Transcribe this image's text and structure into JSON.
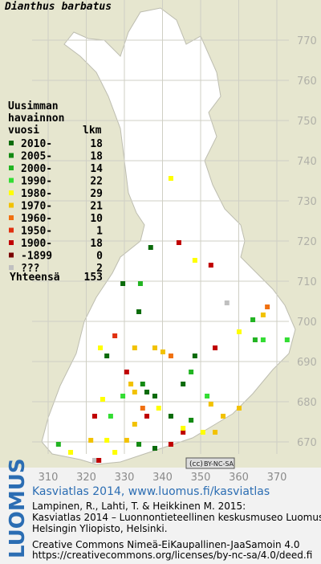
{
  "title": "Dianthus barbatus",
  "legend": {
    "header": [
      "Uusimman",
      "havainnon",
      "vuosi"
    ],
    "count_header": "lkm",
    "entries": [
      {
        "label": "2010-",
        "count": 18,
        "color": "#0b6b0b"
      },
      {
        "label": "2005-",
        "count": 18,
        "color": "#138a13"
      },
      {
        "label": "2000-",
        "count": 14,
        "color": "#22b422"
      },
      {
        "label": "1990-",
        "count": 22,
        "color": "#33dd33"
      },
      {
        "label": "1980-",
        "count": 29,
        "color": "#ffff00"
      },
      {
        "label": "1970-",
        "count": 21,
        "color": "#f2c200"
      },
      {
        "label": "1960-",
        "count": 10,
        "color": "#f07010"
      },
      {
        "label": "1950-",
        "count": 1,
        "color": "#e03010"
      },
      {
        "label": "1900-",
        "count": 18,
        "color": "#c00000"
      },
      {
        "label": "-1899",
        "count": 0,
        "color": "#7a0000"
      },
      {
        "label": "???",
        "count": 2,
        "color": "#c0c0c0"
      }
    ],
    "total_label": "Yhteensä",
    "total": 153
  },
  "xticks": [
    310,
    320,
    330,
    340,
    350,
    360,
    370
  ],
  "yticks": [
    670,
    680,
    690,
    700,
    710,
    720,
    730,
    740,
    750,
    760,
    770
  ],
  "squares": [
    [
      342.2,
      735.6,
      4
    ],
    [
      336.9,
      718.4,
      0
    ],
    [
      344.3,
      719.6,
      8
    ],
    [
      348.5,
      715.2,
      4
    ],
    [
      352.7,
      714,
      8
    ],
    [
      329.6,
      709.4,
      0
    ],
    [
      334.2,
      709.4,
      2
    ],
    [
      356.9,
      704.6,
      10
    ],
    [
      367.5,
      703.6,
      6
    ],
    [
      366.4,
      701.6,
      5
    ],
    [
      363.7,
      700.4,
      2
    ],
    [
      333.8,
      702.4,
      0
    ],
    [
      323.7,
      693.4,
      4
    ],
    [
      327.5,
      696.4,
      7
    ],
    [
      332.7,
      693.4,
      5
    ],
    [
      338,
      693.4,
      5
    ],
    [
      340.1,
      692.4,
      5
    ],
    [
      353.8,
      693.4,
      8
    ],
    [
      364.3,
      695.4,
      2
    ],
    [
      366.4,
      695.4,
      3
    ],
    [
      372.7,
      695.4,
      3
    ],
    [
      360.1,
      697.4,
      4
    ],
    [
      325.4,
      691.4,
      0
    ],
    [
      348.5,
      691.4,
      0
    ],
    [
      342.2,
      691.4,
      6
    ],
    [
      330.6,
      687.4,
      8
    ],
    [
      331.7,
      684.4,
      5
    ],
    [
      332.7,
      682.4,
      5
    ],
    [
      335.9,
      682.4,
      0
    ],
    [
      338,
      681.4,
      0
    ],
    [
      334.8,
      684.4,
      1
    ],
    [
      345.4,
      684.4,
      0
    ],
    [
      347.5,
      687.4,
      2
    ],
    [
      351.7,
      681.4,
      3
    ],
    [
      329.6,
      681.4,
      3
    ],
    [
      324.3,
      680.6,
      4
    ],
    [
      322.2,
      676.4,
      8
    ],
    [
      326.4,
      676.4,
      3
    ],
    [
      334.8,
      678.4,
      6
    ],
    [
      339,
      678.4,
      4
    ],
    [
      342.2,
      676.4,
      0
    ],
    [
      347.5,
      675.4,
      1
    ],
    [
      352.7,
      679.4,
      5
    ],
    [
      355.9,
      676.4,
      5
    ],
    [
      360.1,
      678.4,
      5
    ],
    [
      350.6,
      672.4,
      4
    ],
    [
      353.8,
      672.4,
      5
    ],
    [
      345.4,
      672.4,
      8
    ],
    [
      342.2,
      669.4,
      8
    ],
    [
      338,
      668.4,
      0
    ],
    [
      333.8,
      669.4,
      1
    ],
    [
      330.6,
      670.4,
      5
    ],
    [
      325.4,
      670.4,
      4
    ],
    [
      321.2,
      670.4,
      5
    ],
    [
      315.9,
      667.4,
      4
    ],
    [
      312.7,
      669.4,
      2
    ],
    [
      322.2,
      665.4,
      10
    ],
    [
      327.5,
      667.4,
      4
    ],
    [
      345.4,
      673.4,
      4
    ],
    [
      332.7,
      674.4,
      5
    ],
    [
      335.9,
      676.4,
      8
    ],
    [
      323.3,
      665.4,
      8
    ]
  ],
  "cc_badge": "BY-NC-SA",
  "footer": {
    "logo": "LUOMUS",
    "heading": "Kasviatlas 2014, www.luomus.fi/kasviatlas",
    "citation": [
      "Lampinen, R., Lahti, T. & Heikkinen M. 2015:",
      "Kasviatlas 2014 – Luonnontieteellinen keskusmuseo Luomus,",
      "Helsingin Yliopisto, Helsinki."
    ],
    "license": [
      "Creative Commons Nimeä-EiKaupallinen-JaaSamoin 4.0",
      "https://creativecommons.org/licenses/by-nc-sa/4.0/deed.fi"
    ]
  }
}
